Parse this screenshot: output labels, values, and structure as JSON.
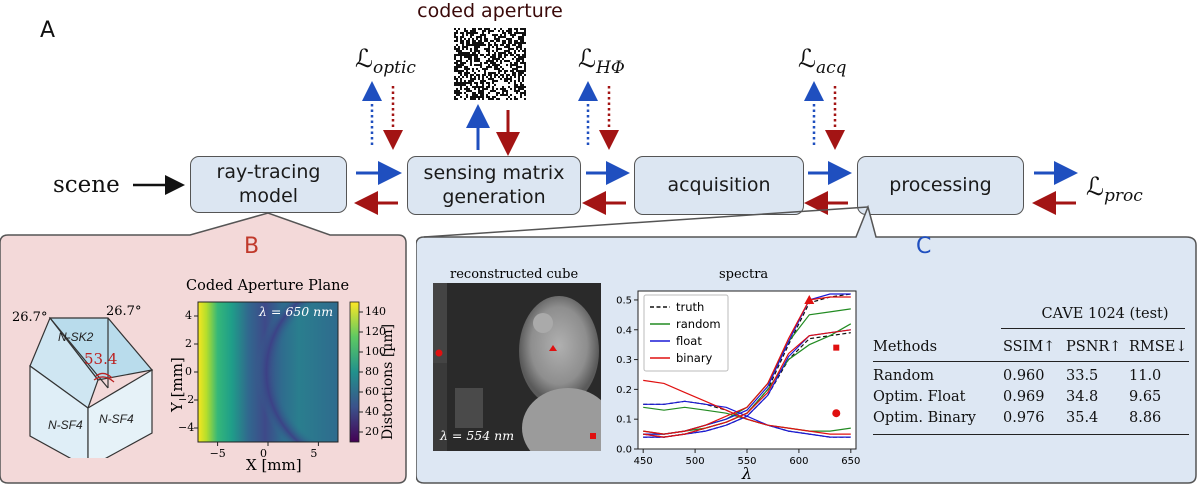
{
  "panel_a": {
    "letter": "A",
    "coded_aperture_label": "coded aperture",
    "scene_label": "scene",
    "boxes": {
      "raytracing": "ray-tracing model",
      "sensing": "sensing matrix generation",
      "acquisition": "acquisition",
      "processing": "processing"
    },
    "losses": {
      "optic": {
        "main": "ℒ",
        "sub": "optic"
      },
      "hphi": {
        "main": "ℒ",
        "sub": "HΦ"
      },
      "acq": {
        "main": "ℒ",
        "sub": "acq"
      },
      "proc": {
        "main": "ℒ",
        "sub": "proc"
      }
    },
    "colors": {
      "forward": "#1f4fbf",
      "backward": "#a31414",
      "black": "#111111"
    }
  },
  "panel_b": {
    "letter": "B",
    "letter_color": "#c0392b",
    "prism": {
      "angle_left": "26.7°",
      "angle_right": "26.7°",
      "angle_center": "53.4",
      "glass_top": "N-SK2",
      "glass_front_left": "N-SF4",
      "glass_front_right": "N-SF4"
    },
    "plot": {
      "title": "Coded Aperture Plane",
      "annotation": "λ = 650 nm",
      "xlabel": "X [mm]",
      "ylabel": "Y [mm]",
      "colorbar_label": "Distortions [µm]",
      "xticks": [
        "−5",
        "0",
        "5"
      ],
      "yticks": [
        "4",
        "2",
        "0",
        "−2",
        "−4"
      ],
      "cbar_ticks": [
        "140",
        "120",
        "100",
        "80",
        "60",
        "40",
        "20"
      ]
    }
  },
  "panel_c": {
    "letter": "C",
    "letter_color": "#1f4fbf",
    "cube_title": "reconstructed cube",
    "cube_annotation": "λ = 554 nm",
    "spectra_title": "spectra",
    "table": {
      "group_header": "CAVE 1024 (test)",
      "columns": [
        "Methods",
        "SSIM↑",
        "PSNR↑",
        "RMSE↓"
      ],
      "rows": [
        [
          "Random",
          "0.960",
          "33.5",
          "11.0"
        ],
        [
          "Optim. Float",
          "0.969",
          "34.8",
          "9.65"
        ],
        [
          "Optim. Binary",
          "0.976",
          "35.4",
          "8.86"
        ]
      ]
    }
  },
  "chart_data": {
    "type": "line",
    "title": "spectra",
    "xlabel": "λ",
    "ylabel": "",
    "xlim": [
      445,
      655
    ],
    "ylim": [
      0.0,
      0.53
    ],
    "xticks": [
      450,
      500,
      550,
      600,
      650
    ],
    "yticks": [
      0.0,
      0.1,
      0.2,
      0.3,
      0.4,
      0.5
    ],
    "x": [
      450,
      470,
      490,
      510,
      530,
      550,
      570,
      590,
      610,
      630,
      650
    ],
    "legend": [
      "truth",
      "random",
      "float",
      "binary"
    ],
    "series": [
      {
        "name": "truth",
        "color": "#111111",
        "dash": true,
        "group": "triangle",
        "values": [
          0.05,
          0.04,
          0.05,
          0.07,
          0.09,
          0.12,
          0.2,
          0.35,
          0.49,
          0.51,
          0.52
        ]
      },
      {
        "name": "truth",
        "color": "#111111",
        "dash": true,
        "group": "square",
        "values": [
          0.04,
          0.04,
          0.05,
          0.06,
          0.08,
          0.11,
          0.18,
          0.3,
          0.37,
          0.38,
          0.39
        ]
      },
      {
        "name": "truth",
        "color": "#111111",
        "dash": true,
        "group": "circle",
        "values": [
          0.15,
          0.15,
          0.16,
          0.15,
          0.13,
          0.1,
          0.08,
          0.06,
          0.05,
          0.04,
          0.04
        ]
      },
      {
        "name": "random",
        "color": "#228b22",
        "dash": false,
        "group": "triangle",
        "values": [
          0.06,
          0.05,
          0.06,
          0.08,
          0.1,
          0.14,
          0.22,
          0.36,
          0.45,
          0.46,
          0.47
        ]
      },
      {
        "name": "random",
        "color": "#228b22",
        "dash": false,
        "group": "square",
        "values": [
          0.05,
          0.05,
          0.06,
          0.07,
          0.09,
          0.12,
          0.2,
          0.3,
          0.35,
          0.38,
          0.42
        ]
      },
      {
        "name": "random",
        "color": "#228b22",
        "dash": false,
        "group": "circle",
        "values": [
          0.14,
          0.13,
          0.14,
          0.13,
          0.12,
          0.1,
          0.08,
          0.07,
          0.06,
          0.06,
          0.07
        ]
      },
      {
        "name": "float",
        "color": "#1a1ad6",
        "dash": false,
        "group": "triangle",
        "values": [
          0.05,
          0.05,
          0.06,
          0.08,
          0.1,
          0.13,
          0.21,
          0.36,
          0.5,
          0.52,
          0.52
        ]
      },
      {
        "name": "float",
        "color": "#1a1ad6",
        "dash": false,
        "group": "square",
        "values": [
          0.04,
          0.04,
          0.05,
          0.06,
          0.08,
          0.11,
          0.18,
          0.31,
          0.38,
          0.39,
          0.4
        ]
      },
      {
        "name": "float",
        "color": "#1a1ad6",
        "dash": false,
        "group": "circle",
        "values": [
          0.15,
          0.15,
          0.16,
          0.15,
          0.14,
          0.11,
          0.08,
          0.06,
          0.05,
          0.04,
          0.04
        ]
      },
      {
        "name": "binary",
        "color": "#e01010",
        "dash": false,
        "group": "triangle",
        "values": [
          0.06,
          0.05,
          0.06,
          0.08,
          0.11,
          0.14,
          0.22,
          0.37,
          0.5,
          0.51,
          0.51
        ]
      },
      {
        "name": "binary",
        "color": "#e01010",
        "dash": false,
        "group": "square",
        "values": [
          0.05,
          0.04,
          0.05,
          0.07,
          0.09,
          0.12,
          0.19,
          0.32,
          0.38,
          0.39,
          0.4
        ]
      },
      {
        "name": "binary",
        "color": "#e01010",
        "dash": false,
        "group": "circle",
        "values": [
          0.23,
          0.22,
          0.19,
          0.16,
          0.13,
          0.1,
          0.08,
          0.07,
          0.06,
          0.05,
          0.05
        ]
      }
    ],
    "markers": [
      {
        "shape": "triangle",
        "x": 610,
        "y": 0.5
      },
      {
        "shape": "square",
        "x": 636,
        "y": 0.34
      },
      {
        "shape": "circle",
        "x": 636,
        "y": 0.12
      }
    ]
  }
}
